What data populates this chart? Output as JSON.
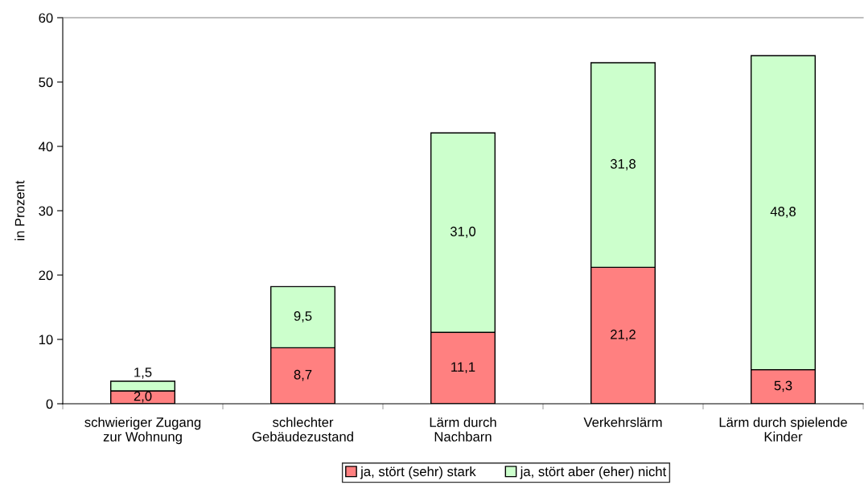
{
  "chart_data": {
    "type": "bar",
    "stacked": true,
    "categories": [
      "schwieriger Zugang\nzur Wohnung",
      "schlechter\nGebäudezustand",
      "Lärm durch\nNachbarn",
      "Verkehrslärm",
      "Lärm durch spielende\nKinder"
    ],
    "ylabel": "in Prozent",
    "ylim": [
      0,
      60
    ],
    "yticks": [
      0,
      10,
      20,
      30,
      40,
      50,
      60
    ],
    "grid": false,
    "legend": "bottom",
    "series": [
      {
        "name": "ja, stört (sehr) stark",
        "color": "#ff8080",
        "values": [
          2.0,
          8.7,
          11.1,
          21.2,
          5.3
        ],
        "value_labels": [
          "2,0",
          "8,7",
          "11,1",
          "21,2",
          "5,3"
        ]
      },
      {
        "name": "ja, stört aber (eher) nicht",
        "color": "#ccffcc",
        "values": [
          1.5,
          9.5,
          31.0,
          31.8,
          48.8
        ],
        "value_labels": [
          "1,5",
          "9,5",
          "31,0",
          "31,8",
          "48,8"
        ]
      }
    ]
  }
}
